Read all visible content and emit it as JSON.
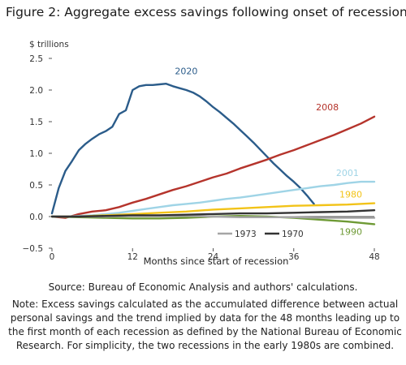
{
  "figure": {
    "title": "Figure 2: Aggregate excess savings following onset of recessions",
    "source": "Source: Bureau of Economic Analysis and authors' calculations.",
    "note": "Note: Excess savings calculated as the accumulated difference between actual personal savings and the trend implied by data for the 48 months leading up to the first month of each recession as defined by the National Bureau of Economic Research. For simplicity, the two recessions in the early 1980s are combined."
  },
  "chart_data": {
    "type": "line",
    "title": "",
    "xlabel": "Months since start of recession",
    "ylabel": "$ trillions",
    "xlim": [
      0,
      48
    ],
    "ylim": [
      -0.5,
      2.5
    ],
    "x_ticks": [
      0,
      12,
      24,
      36,
      48
    ],
    "y_ticks": [
      -0.5,
      0.0,
      0.5,
      1.0,
      1.5,
      2.0,
      2.5
    ],
    "y_tick_labels": [
      "−0.5",
      "0.0",
      "0.5",
      "1.0",
      "1.5",
      "2.0",
      "2.5"
    ],
    "grid": false,
    "zero_line": true,
    "legend": [
      {
        "name": "1973",
        "color": "#a6a6a6"
      },
      {
        "name": "1970",
        "color": "#333333"
      }
    ],
    "series": [
      {
        "name": "2020",
        "color": "#2b5c8a",
        "x": [
          0,
          1,
          2,
          3,
          4,
          5,
          6,
          7,
          8,
          9,
          10,
          11,
          12,
          13,
          14,
          15,
          16,
          17,
          18,
          19,
          20,
          21,
          22,
          23,
          24,
          25,
          26,
          27,
          28,
          29,
          30,
          31,
          32,
          33,
          34,
          35,
          36,
          37,
          38,
          39
        ],
        "values": [
          0.05,
          0.45,
          0.72,
          0.88,
          1.05,
          1.15,
          1.23,
          1.3,
          1.35,
          1.42,
          1.62,
          1.68,
          2.0,
          2.06,
          2.08,
          2.08,
          2.09,
          2.1,
          2.06,
          2.03,
          2.0,
          1.96,
          1.9,
          1.82,
          1.73,
          1.65,
          1.56,
          1.47,
          1.37,
          1.27,
          1.17,
          1.06,
          0.95,
          0.84,
          0.74,
          0.64,
          0.55,
          0.45,
          0.33,
          0.2
        ]
      },
      {
        "name": "2008",
        "color": "#b5342c",
        "x": [
          0,
          2,
          4,
          6,
          8,
          10,
          12,
          14,
          16,
          18,
          20,
          22,
          24,
          26,
          28,
          30,
          32,
          34,
          36,
          38,
          40,
          42,
          44,
          46,
          48
        ],
        "values": [
          0.0,
          -0.02,
          0.04,
          0.08,
          0.1,
          0.15,
          0.22,
          0.28,
          0.35,
          0.42,
          0.48,
          0.55,
          0.62,
          0.68,
          0.76,
          0.83,
          0.9,
          0.98,
          1.05,
          1.13,
          1.21,
          1.29,
          1.38,
          1.47,
          1.58
        ]
      },
      {
        "name": "2001",
        "color": "#9fd4e6",
        "x": [
          0,
          2,
          4,
          6,
          8,
          10,
          12,
          14,
          16,
          18,
          20,
          22,
          24,
          26,
          28,
          30,
          32,
          34,
          36,
          38,
          40,
          42,
          44,
          46,
          48
        ],
        "values": [
          0.0,
          0.0,
          0.01,
          0.02,
          0.04,
          0.06,
          0.09,
          0.12,
          0.15,
          0.18,
          0.2,
          0.22,
          0.25,
          0.28,
          0.3,
          0.33,
          0.36,
          0.39,
          0.42,
          0.45,
          0.48,
          0.5,
          0.53,
          0.55,
          0.55
        ]
      },
      {
        "name": "1980",
        "color": "#f2c318",
        "x": [
          0,
          4,
          8,
          12,
          16,
          20,
          24,
          28,
          32,
          36,
          40,
          44,
          48
        ],
        "values": [
          0.0,
          0.0,
          0.02,
          0.04,
          0.06,
          0.08,
          0.11,
          0.13,
          0.15,
          0.17,
          0.18,
          0.19,
          0.21
        ]
      },
      {
        "name": "1990",
        "color": "#6e9a35",
        "x": [
          0,
          4,
          8,
          12,
          16,
          20,
          24,
          28,
          32,
          36,
          40,
          44,
          48
        ],
        "values": [
          0.0,
          -0.01,
          -0.02,
          -0.03,
          -0.03,
          -0.02,
          0.0,
          0.01,
          0.0,
          -0.02,
          -0.05,
          -0.08,
          -0.12
        ]
      },
      {
        "name": "1973",
        "color": "#a6a6a6",
        "x": [
          0,
          4,
          8,
          12,
          16,
          20,
          24,
          28,
          32,
          36,
          40,
          44,
          48
        ],
        "values": [
          0.0,
          0.0,
          0.0,
          0.01,
          0.01,
          0.01,
          0.0,
          -0.01,
          -0.01,
          -0.01,
          -0.02,
          -0.02,
          -0.02
        ]
      },
      {
        "name": "1970",
        "color": "#333333",
        "x": [
          0,
          4,
          8,
          12,
          16,
          20,
          24,
          28,
          32,
          36,
          40,
          44,
          48
        ],
        "values": [
          0.0,
          0.0,
          0.01,
          0.02,
          0.02,
          0.03,
          0.04,
          0.05,
          0.05,
          0.06,
          0.07,
          0.08,
          0.1
        ]
      }
    ]
  }
}
